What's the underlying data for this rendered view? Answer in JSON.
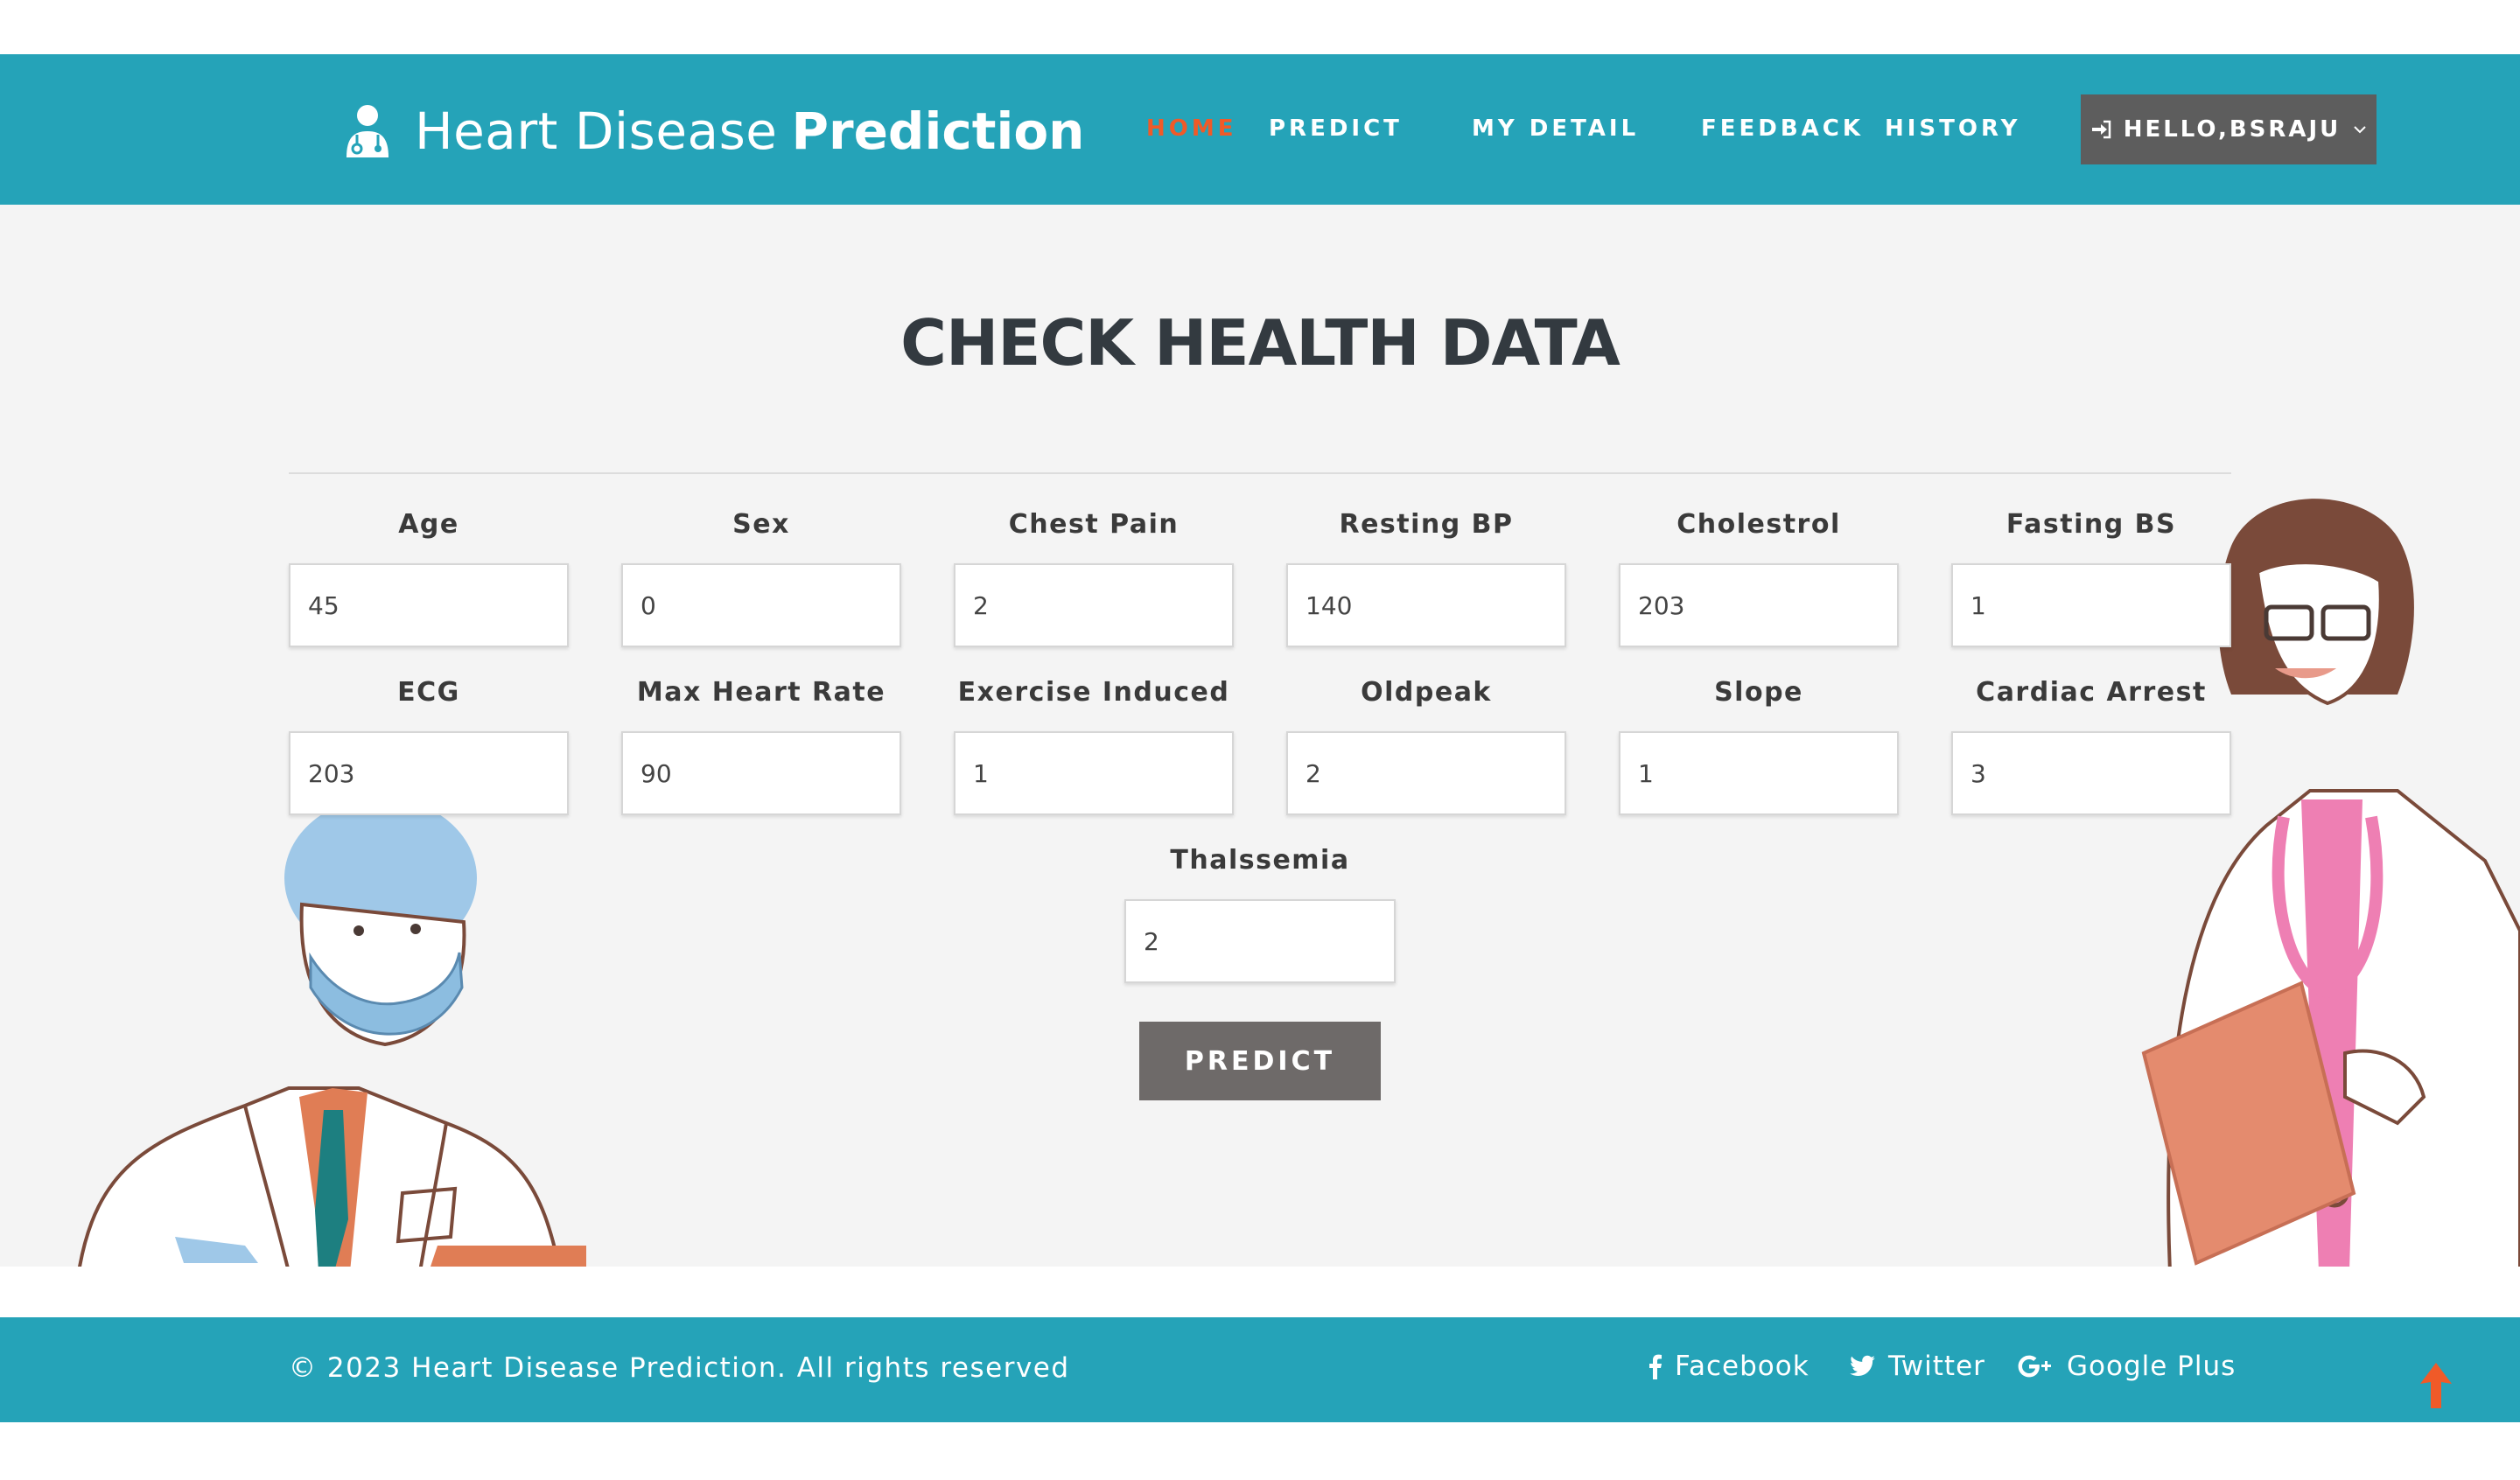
{
  "header": {
    "brand_light": "Heart Disease",
    "brand_bold": "Prediction",
    "brand_icon": "doctor-icon",
    "nav": [
      {
        "label": "HOME",
        "active": true
      },
      {
        "label": "PREDICT",
        "active": false
      },
      {
        "label": "MY DETAIL",
        "active": false
      },
      {
        "label": "FEEDBACK",
        "active": false
      },
      {
        "label": "HISTORY",
        "active": false
      }
    ],
    "user_button": {
      "label": "HELLO,BSRAJU",
      "icon": "login-icon"
    }
  },
  "main": {
    "title": "CHECK HEALTH DATA",
    "fields": [
      {
        "label": "Age",
        "value": "45"
      },
      {
        "label": "Sex",
        "value": "0"
      },
      {
        "label": "Chest Pain",
        "value": "2"
      },
      {
        "label": "Resting BP",
        "value": "140"
      },
      {
        "label": "Cholestrol",
        "value": "203"
      },
      {
        "label": "Fasting BS",
        "value": "1"
      },
      {
        "label": "ECG",
        "value": "203"
      },
      {
        "label": "Max Heart Rate",
        "value": "90"
      },
      {
        "label": "Exercise Induced",
        "value": "1"
      },
      {
        "label": "Oldpeak",
        "value": "2"
      },
      {
        "label": "Slope",
        "value": "1"
      },
      {
        "label": "Cardiac Arrest",
        "value": "3"
      },
      {
        "label": "Thalssemia",
        "value": "2"
      }
    ],
    "predict_button": "PREDICT"
  },
  "footer": {
    "copyright": "© 2023 Heart Disease Prediction. All rights reserved",
    "social": [
      {
        "label": "Facebook",
        "icon": "facebook-icon"
      },
      {
        "label": "Twitter",
        "icon": "twitter-icon"
      },
      {
        "label": "Google Plus",
        "icon": "google-plus-icon"
      }
    ]
  },
  "colors": {
    "brand_teal": "#25a3b8",
    "active_nav": "#f05a28",
    "button_gray": "#6e6a69",
    "user_button": "#5d5d5d",
    "background": "#f4f4f4"
  }
}
